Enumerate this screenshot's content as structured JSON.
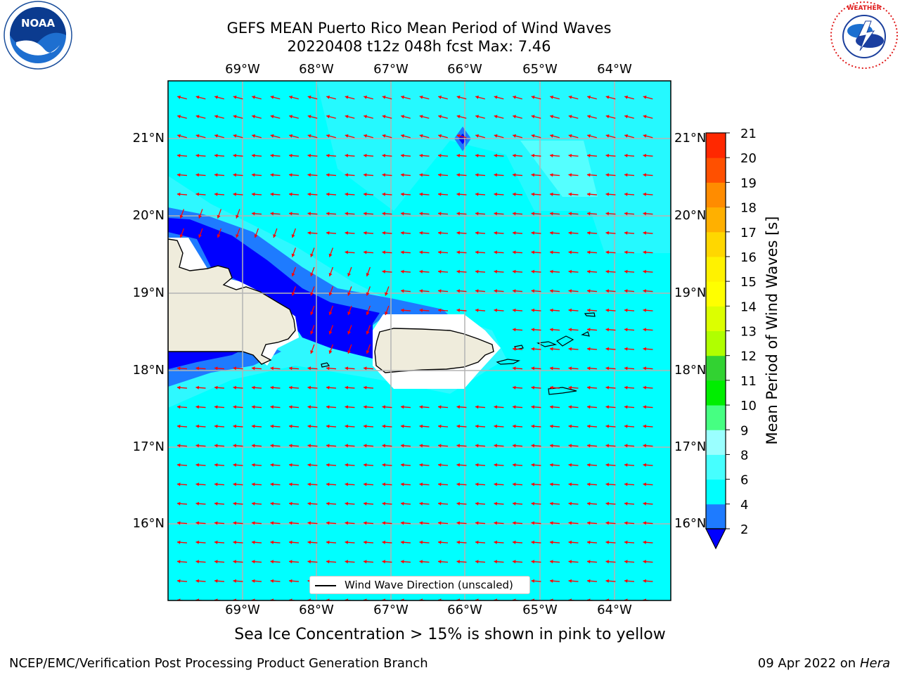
{
  "title": {
    "line1": "GEFS MEAN Puerto Rico Mean Period of Wind Waves",
    "line2": "20220408 t12z 048h fcst   Max: 7.46"
  },
  "logos": {
    "noaa_text": "NOAA",
    "noaa_ring": "NATIONAL OCEANIC AND ATMOSPHERIC ADMINISTRATION · U.S. DEPARTMENT OF COMMERCE",
    "nws_ring": "NATIONAL WEATHER SERVICE"
  },
  "map": {
    "lon_labels": [
      "69°W",
      "68°W",
      "67°W",
      "66°W",
      "65°W",
      "64°W"
    ],
    "lat_labels": [
      "21°N",
      "20°N",
      "19°N",
      "18°N",
      "17°N",
      "16°N"
    ],
    "legend": "Wind Wave Direction (unscaled)",
    "arrow_color": "#ff0000",
    "land_color": "#efecdc"
  },
  "colorbar": {
    "label": "Mean Period of Wind Waves [s]",
    "ticks": [
      "2",
      "4",
      "6",
      "8",
      "9",
      "10",
      "11",
      "12",
      "13",
      "14",
      "15",
      "16",
      "17",
      "18",
      "19",
      "20",
      "21"
    ],
    "colors": [
      "#0000ff",
      "#1e7bff",
      "#00ffff",
      "#46ffff",
      "#9affff",
      "#46ff82",
      "#00ee00",
      "#32d232",
      "#b0ff00",
      "#dcff00",
      "#ffff00",
      "#fff200",
      "#ffd700",
      "#ffb000",
      "#ff8c00",
      "#ff5000",
      "#ff2800",
      "#ff0000"
    ]
  },
  "caption": "Sea Ice Concentration > 15% is shown in pink to yellow",
  "footer": {
    "left": "NCEP/EMC/Verification Post Processing Product Generation Branch",
    "right_prefix": "09 Apr 2022 on ",
    "right_host": "Hera"
  }
}
